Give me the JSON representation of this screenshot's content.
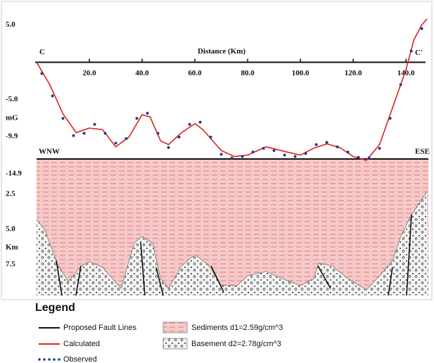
{
  "chart_data": [
    {
      "type": "line",
      "x_label": "Distance (Km)",
      "y_label": "mG",
      "annotations": [
        "C",
        "C'"
      ],
      "xlim": [
        0,
        148.5
      ],
      "ylim": [
        -14.9,
        5.5
      ],
      "xticks": [
        {
          "value": 20,
          "label": "20.0"
        },
        {
          "value": 40,
          "label": "40.0"
        },
        {
          "value": 60,
          "label": "60.0"
        },
        {
          "value": 80,
          "label": "80.0"
        },
        {
          "value": 100,
          "label": "100.0"
        },
        {
          "value": 120,
          "label": "120.0"
        },
        {
          "value": 140,
          "label": "140.0"
        }
      ],
      "yticks": [
        {
          "value": 5,
          "label": "5.0"
        },
        {
          "value": -5,
          "label": "-5.0"
        },
        -9.9,
        -14.9
      ],
      "series": [
        {
          "name": "Calculated",
          "color": "#e02020",
          "style": "solid",
          "x": [
            0,
            5,
            10,
            15,
            20,
            25,
            30,
            35,
            40,
            43,
            47,
            50,
            55,
            60,
            63,
            70,
            75,
            80,
            87,
            95,
            100,
            105,
            110,
            115,
            120,
            125,
            130,
            135,
            140,
            143,
            146,
            148
          ],
          "values": [
            0,
            -3,
            -6.9,
            -9.4,
            -8.8,
            -9,
            -11.3,
            -10,
            -7,
            -7.3,
            -10.5,
            -11,
            -9.4,
            -8.2,
            -9,
            -11.8,
            -12.6,
            -12.4,
            -11.3,
            -12,
            -12.4,
            -11.5,
            -10.9,
            -11.4,
            -12.6,
            -13.1,
            -11,
            -6,
            -1,
            3,
            5,
            5.8
          ]
        },
        {
          "name": "Observed",
          "color": "#1c3f8c",
          "style": "dots",
          "x": [
            2,
            6,
            10,
            14,
            18,
            22,
            26,
            30,
            34,
            38,
            42,
            46,
            50,
            54,
            58,
            62,
            66,
            70,
            74,
            78,
            82,
            86,
            90,
            94,
            98,
            102,
            106,
            110,
            114,
            118,
            122,
            126,
            130,
            134,
            138,
            142,
            146
          ],
          "values": [
            -1.5,
            -4.5,
            -7.5,
            -9.8,
            -9.5,
            -8.3,
            -9.5,
            -10.8,
            -10.2,
            -7.5,
            -6.8,
            -9.5,
            -11.4,
            -10,
            -8.3,
            -8,
            -10,
            -12.3,
            -12.8,
            -12.6,
            -12,
            -11.5,
            -11.8,
            -12.4,
            -12.6,
            -12.2,
            -11,
            -10.7,
            -11.3,
            -12,
            -12.7,
            -12.8,
            -11.5,
            -7.5,
            -3,
            1.5,
            4.5
          ]
        }
      ]
    },
    {
      "type": "area",
      "y_label": "Km",
      "annotations": [
        "WNW",
        "ESE"
      ],
      "xlim": [
        0,
        148.5
      ],
      "ylim": [
        0,
        9.7
      ],
      "yticks": [
        2.5,
        {
          "value": 5,
          "label": "5.0"
        },
        7.5
      ],
      "sediment_label": "Sediments  d1=2.59g/cm^3",
      "series": [
        {
          "name": "Basement  d2=2.78g/cm^3",
          "color": "#e8e8e8",
          "x": [
            0,
            3,
            8,
            12,
            17,
            20,
            25,
            32,
            37,
            40,
            44,
            47,
            50,
            55,
            60,
            65,
            70,
            76,
            80,
            87,
            93,
            100,
            105,
            107,
            112,
            118,
            125,
            130,
            135,
            138,
            142,
            148
          ],
          "values": [
            4.3,
            5,
            7.5,
            8.7,
            7.6,
            7.3,
            7.7,
            9.2,
            6,
            5.5,
            6,
            8.5,
            9.2,
            7.6,
            6.8,
            7.5,
            9,
            9,
            8.3,
            8,
            8.5,
            9,
            8.5,
            7.4,
            7.6,
            8.5,
            9.3,
            8.3,
            7.2,
            5.5,
            4,
            2.3
          ]
        }
      ]
    }
  ],
  "legend": {
    "title": "Legend",
    "fault_label": "Proposed Fault Lines"
  }
}
